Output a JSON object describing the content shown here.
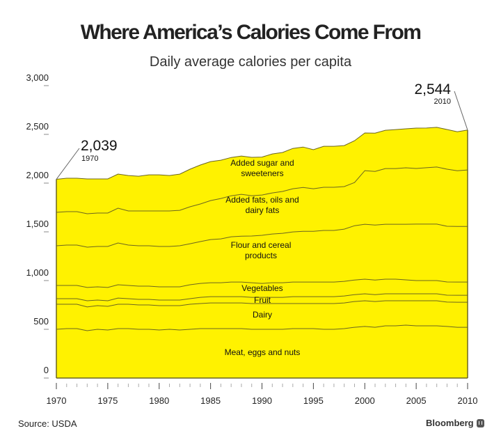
{
  "header": {
    "title": "Where America’s Calories Come From",
    "subtitle": "Daily average calories per capita"
  },
  "footer": {
    "source": "Source: USDA",
    "brand": "Bloomberg",
    "brand_icon": "bloomberg-logo-icon"
  },
  "colors": {
    "fill": "#fff200",
    "line": "#6b6520",
    "axis": "#6b6520",
    "tick": "#888888"
  },
  "chart_data": {
    "type": "area",
    "stacked": true,
    "title": "Where America’s Calories Come From",
    "subtitle": "Daily average calories per capita",
    "xlabel": "",
    "ylabel": "",
    "x": [
      1970,
      1971,
      1972,
      1973,
      1974,
      1975,
      1976,
      1977,
      1978,
      1979,
      1980,
      1981,
      1982,
      1983,
      1984,
      1985,
      1986,
      1987,
      1988,
      1989,
      1990,
      1991,
      1992,
      1993,
      1994,
      1995,
      1996,
      1997,
      1998,
      1999,
      2000,
      2001,
      2002,
      2003,
      2004,
      2005,
      2006,
      2007,
      2008,
      2009,
      2010
    ],
    "xlim": [
      1970,
      2010
    ],
    "ylim": [
      0,
      3000
    ],
    "yticks": [
      0,
      500,
      1000,
      1500,
      2000,
      2500,
      3000
    ],
    "ytick_labels": [
      "0",
      "500",
      "1,000",
      "1,500",
      "2,000",
      "2,500",
      "3,000"
    ],
    "xticks": [
      1970,
      1975,
      1980,
      1985,
      1990,
      1995,
      2000,
      2005,
      2010
    ],
    "xtick_labels": [
      "1970",
      "1975",
      "1980",
      "1985",
      "1990",
      "1995",
      "2000",
      "2005",
      "2010"
    ],
    "grid": false,
    "legend": "none",
    "series": [
      {
        "name": "Meat, eggs and nuts",
        "label": "Meat, eggs and nuts",
        "values": [
          500,
          507,
          507,
          486,
          500,
          493,
          507,
          507,
          500,
          500,
          493,
          500,
          493,
          500,
          507,
          507,
          507,
          507,
          507,
          500,
          500,
          500,
          500,
          507,
          507,
          507,
          500,
          500,
          507,
          521,
          529,
          521,
          536,
          536,
          543,
          536,
          536,
          536,
          529,
          521,
          521
        ]
      },
      {
        "name": "Dairy",
        "label": "Dairy",
        "values": [
          257,
          250,
          250,
          243,
          243,
          243,
          250,
          250,
          250,
          250,
          250,
          243,
          250,
          257,
          257,
          264,
          264,
          264,
          264,
          264,
          264,
          264,
          264,
          257,
          257,
          257,
          264,
          264,
          264,
          264,
          264,
          264,
          257,
          257,
          250,
          257,
          257,
          257,
          250,
          257,
          257
        ]
      },
      {
        "name": "Fruit",
        "label": "Fruit",
        "values": [
          57,
          57,
          57,
          64,
          57,
          57,
          64,
          57,
          57,
          57,
          57,
          57,
          57,
          57,
          64,
          64,
          64,
          64,
          64,
          64,
          64,
          64,
          64,
          71,
          71,
          71,
          71,
          71,
          71,
          71,
          71,
          71,
          71,
          71,
          71,
          71,
          71,
          71,
          71,
          71,
          71
        ]
      },
      {
        "name": "Vegetables",
        "label": "Vegetables",
        "values": [
          136,
          136,
          136,
          136,
          136,
          136,
          136,
          136,
          136,
          136,
          136,
          136,
          136,
          143,
          143,
          143,
          143,
          150,
          150,
          150,
          143,
          150,
          150,
          150,
          150,
          150,
          150,
          150,
          150,
          150,
          150,
          150,
          150,
          150,
          143,
          136,
          136,
          136,
          136,
          136,
          136
        ]
      },
      {
        "name": "Flour and cereal products",
        "label": "Flour and cereal\nproducts",
        "values": [
          407,
          414,
          414,
          414,
          414,
          421,
          429,
          414,
          414,
          414,
          414,
          414,
          421,
          421,
          429,
          443,
          450,
          464,
          471,
          479,
          493,
          500,
          507,
          514,
          521,
          521,
          529,
          529,
          536,
          557,
          564,
          564,
          564,
          564,
          571,
          579,
          579,
          579,
          571,
          571,
          571
        ]
      },
      {
        "name": "Added fats, oils and dairy fats",
        "label": "Added fats, oils and\ndairy fats",
        "values": [
          343,
          343,
          343,
          343,
          343,
          343,
          357,
          350,
          357,
          357,
          364,
          364,
          364,
          379,
          386,
          400,
          414,
          421,
          429,
          414,
          414,
          421,
          429,
          443,
          450,
          436,
          443,
          443,
          436,
          443,
          550,
          550,
          571,
          571,
          579,
          571,
          579,
          586,
          586,
          571,
          579
        ]
      },
      {
        "name": "Added sugar and sweeteners",
        "label": "Added sugar and\nsweeteners",
        "values": [
          339,
          343,
          343,
          357,
          350,
          350,
          350,
          364,
          357,
          371,
          371,
          364,
          371,
          386,
          400,
          400,
          393,
          393,
          393,
          393,
          393,
          400,
          400,
          414,
          414,
          421,
          421,
          421,
          421,
          429,
          386,
          393,
          393,
          400,
          400,
          414,
          407,
          407,
          407,
          400,
          409
        ]
      }
    ],
    "totals": [
      2039,
      2050,
      2050,
      2043,
      2043,
      2043,
      2093,
      2078,
      2071,
      2085,
      2085,
      2078,
      2092,
      2143,
      2186,
      2221,
      2235,
      2263,
      2278,
      2264,
      2267,
      2299,
      2314,
      2356,
      2370,
      2343,
      2378,
      2378,
      2385,
      2435,
      2514,
      2513,
      2542,
      2549,
      2557,
      2564,
      2565,
      2572,
      2550,
      2527,
      2544
    ],
    "annotations": [
      {
        "value_label": "2,039",
        "year_label": "1970",
        "x": 1970,
        "y": 2039
      },
      {
        "value_label": "2,544",
        "year_label": "2010",
        "x": 2010,
        "y": 2544
      }
    ]
  }
}
